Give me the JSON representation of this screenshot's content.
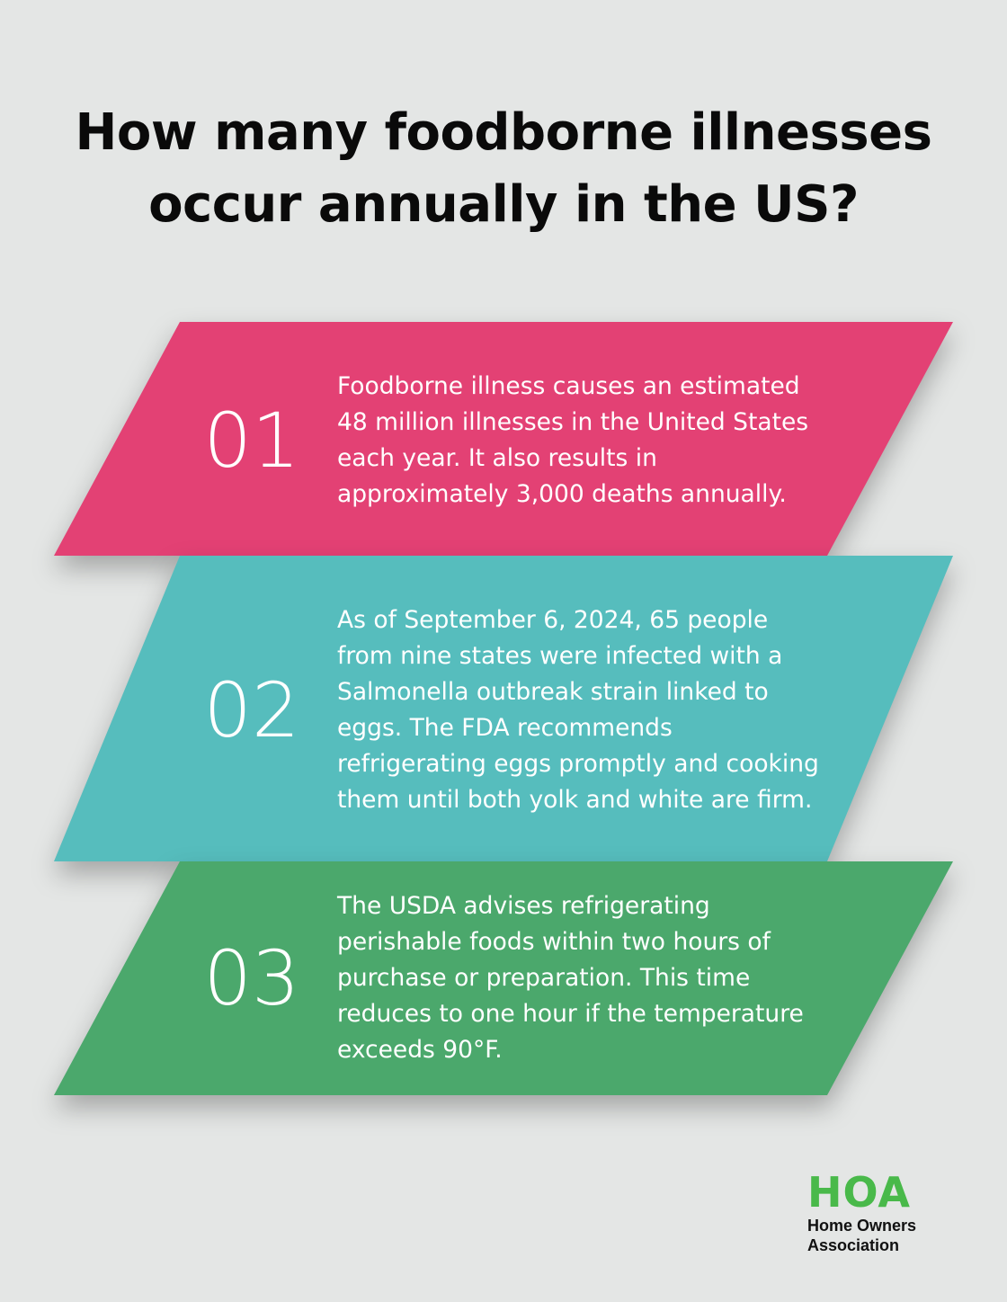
{
  "title": {
    "line1": "How many foodborne illnesses",
    "line2": "occur annually in the US?"
  },
  "cards": [
    {
      "number": "01",
      "text": "Foodborne illness causes an estimated 48 million illnesses in the United States each year. It also results in approximately 3,000 deaths annually.",
      "color": "#e34174"
    },
    {
      "number": "02",
      "text": "As of September 6, 2024, 65 people from nine states were infected with a Salmonella outbreak strain linked to eggs. The FDA recommends refrigerating eggs promptly and cooking them until both yolk and white are firm.",
      "color": "#56bdbd"
    },
    {
      "number": "03",
      "text": "The USDA advises refrigerating perishable foods within two hours of purchase or preparation. This time reduces to one hour if the temperature exceeds 90°F.",
      "color": "#4ba86c"
    }
  ],
  "logo": {
    "mark": "HOA",
    "line1": "Home Owners",
    "line2": "Association",
    "color": "#49b94a"
  }
}
